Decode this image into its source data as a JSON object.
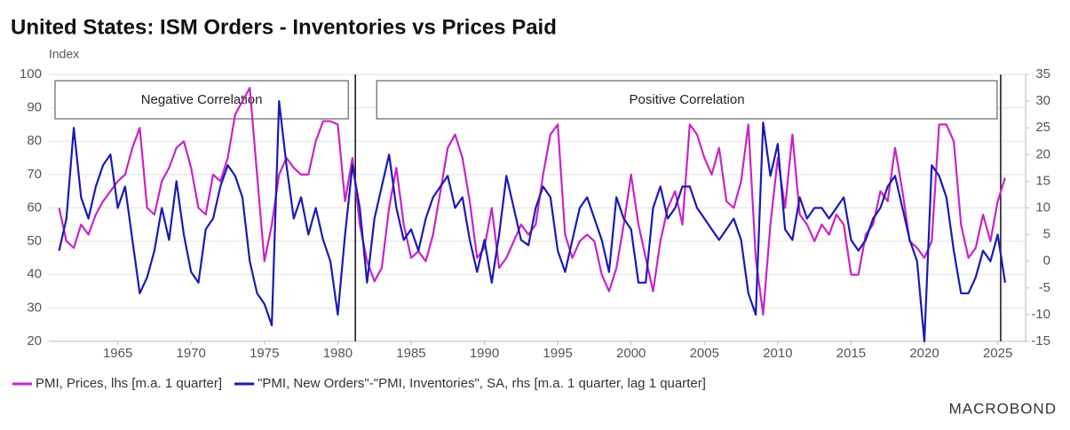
{
  "chart_data": {
    "type": "line",
    "title": "United States: ISM Orders - Inventories vs Prices Paid",
    "y_label": "Index",
    "annotations": [
      "Negative Correlation",
      "Positive Correlation"
    ],
    "vlines": [
      1981.2,
      2025.2
    ],
    "source": "MACROBOND",
    "xlim": [
      1960.3,
      2026.9
    ],
    "xticks": [
      1965,
      1970,
      1975,
      1980,
      1985,
      1990,
      1995,
      2000,
      2005,
      2010,
      2015,
      2020,
      2025
    ],
    "ylim": [
      20,
      100
    ],
    "yticks": [
      20,
      30,
      40,
      50,
      60,
      70,
      80,
      90,
      100
    ],
    "y2lim": [
      -15,
      35
    ],
    "y2ticks": [
      -15,
      -10,
      -5,
      0,
      5,
      10,
      15,
      20,
      25,
      30,
      35
    ],
    "grid": true,
    "x": [
      1961.0,
      1961.5,
      1962.0,
      1962.5,
      1963.0,
      1963.5,
      1964.0,
      1964.5,
      1965.0,
      1965.5,
      1966.0,
      1966.5,
      1967.0,
      1967.5,
      1968.0,
      1968.5,
      1969.0,
      1969.5,
      1970.0,
      1970.5,
      1971.0,
      1971.5,
      1972.0,
      1972.5,
      1973.0,
      1973.5,
      1974.0,
      1974.5,
      1975.0,
      1975.5,
      1976.0,
      1976.5,
      1977.0,
      1977.5,
      1978.0,
      1978.5,
      1979.0,
      1979.5,
      1980.0,
      1980.5,
      1981.0,
      1981.5,
      1982.0,
      1982.5,
      1983.0,
      1983.5,
      1984.0,
      1984.5,
      1985.0,
      1985.5,
      1986.0,
      1986.5,
      1987.0,
      1987.5,
      1988.0,
      1988.5,
      1989.0,
      1989.5,
      1990.0,
      1990.5,
      1991.0,
      1991.5,
      1992.0,
      1992.5,
      1993.0,
      1993.5,
      1994.0,
      1994.5,
      1995.0,
      1995.5,
      1996.0,
      1996.5,
      1997.0,
      1997.5,
      1998.0,
      1998.5,
      1999.0,
      1999.5,
      2000.0,
      2000.5,
      2001.0,
      2001.5,
      2002.0,
      2002.5,
      2003.0,
      2003.5,
      2004.0,
      2004.5,
      2005.0,
      2005.5,
      2006.0,
      2006.5,
      2007.0,
      2007.5,
      2008.0,
      2008.5,
      2009.0,
      2009.5,
      2010.0,
      2010.5,
      2011.0,
      2011.5,
      2012.0,
      2012.5,
      2013.0,
      2013.5,
      2014.0,
      2014.5,
      2015.0,
      2015.5,
      2016.0,
      2016.5,
      2017.0,
      2017.5,
      2018.0,
      2018.5,
      2019.0,
      2019.5,
      2020.0,
      2020.5,
      2021.0,
      2021.5,
      2022.0,
      2022.5,
      2023.0,
      2023.5,
      2024.0,
      2024.5,
      2025.0,
      2025.5
    ],
    "series": [
      {
        "name": "PMI, Prices, lhs [m.a. 1 quarter]",
        "color": "#c724c7",
        "values": [
          60,
          50,
          48,
          55,
          52,
          58,
          62,
          65,
          68,
          70,
          78,
          84,
          60,
          58,
          68,
          72,
          78,
          80,
          72,
          60,
          58,
          70,
          68,
          75,
          88,
          92,
          96,
          70,
          44,
          55,
          70,
          75,
          72,
          70,
          70,
          80,
          86,
          86,
          85,
          62,
          75,
          55,
          44,
          38,
          42,
          60,
          72,
          55,
          45,
          47,
          44,
          52,
          65,
          78,
          82,
          75,
          62,
          45,
          48,
          60,
          42,
          45,
          50,
          55,
          52,
          55,
          70,
          82,
          85,
          52,
          45,
          50,
          52,
          50,
          40,
          35,
          42,
          55,
          70,
          55,
          45,
          35,
          50,
          60,
          65,
          55,
          85,
          82,
          75,
          70,
          78,
          62,
          60,
          68,
          85,
          45,
          28,
          55,
          75,
          60,
          82,
          58,
          55,
          50,
          55,
          52,
          58,
          55,
          40,
          40,
          52,
          55,
          65,
          62,
          78,
          65,
          50,
          48,
          45,
          50,
          85,
          85,
          80,
          55,
          45,
          48,
          58,
          50,
          62,
          69
        ]
      },
      {
        "name": "\"PMI, New Orders\"-\"PMI, Inventories\", SA, rhs [m.a. 1 quarter, lag 1 quarter]",
        "color": "#1a1ab4",
        "axis": "y2",
        "values": [
          2,
          8,
          25,
          12,
          8,
          14,
          18,
          20,
          10,
          14,
          4,
          -6,
          -3,
          2,
          10,
          4,
          15,
          5,
          -2,
          -4,
          6,
          8,
          14,
          18,
          16,
          12,
          0,
          -6,
          -8,
          -12,
          30,
          18,
          8,
          12,
          5,
          10,
          4,
          0,
          -10,
          5,
          18,
          10,
          -4,
          8,
          14,
          20,
          10,
          4,
          6,
          2,
          8,
          12,
          14,
          16,
          10,
          12,
          4,
          -2,
          4,
          -4,
          5,
          16,
          10,
          4,
          3,
          10,
          14,
          12,
          2,
          -2,
          4,
          10,
          12,
          8,
          4,
          -2,
          12,
          8,
          6,
          -4,
          -4,
          10,
          14,
          8,
          10,
          14,
          14,
          10,
          8,
          6,
          4,
          6,
          8,
          4,
          -6,
          -10,
          26,
          16,
          22,
          6,
          4,
          12,
          8,
          10,
          10,
          8,
          10,
          12,
          4,
          2,
          4,
          8,
          10,
          14,
          16,
          10,
          4,
          0,
          -15,
          18,
          16,
          12,
          2,
          -6,
          -6,
          -3,
          2,
          0,
          5,
          -4
        ]
      }
    ]
  }
}
